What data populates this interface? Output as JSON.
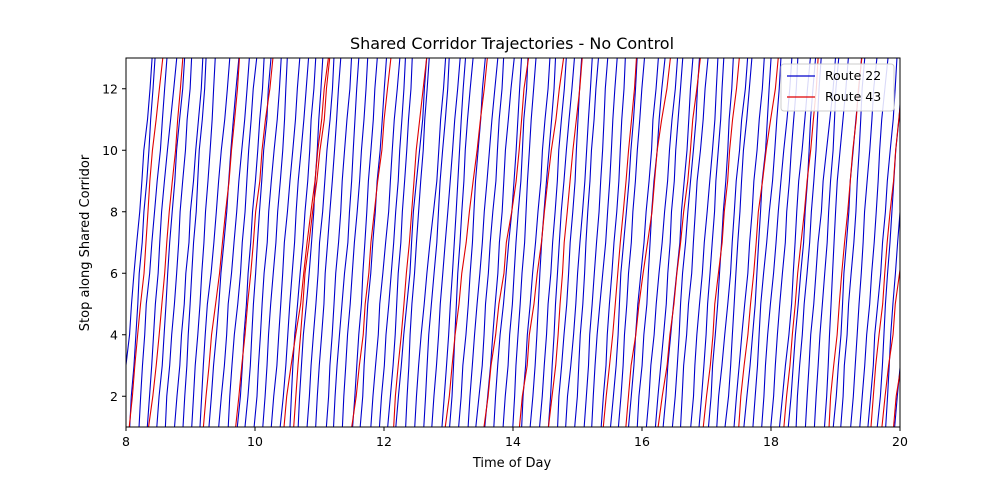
{
  "chart_data": {
    "type": "line",
    "title": "Shared Corridor Trajectories - No Control",
    "xlabel": "Time of Day",
    "ylabel": "Stop along Shared Corridor",
    "xlim": [
      8,
      20
    ],
    "ylim": [
      1,
      13
    ],
    "x_ticks": [
      8,
      10,
      12,
      14,
      16,
      18,
      20
    ],
    "y_ticks": [
      2,
      4,
      6,
      8,
      10,
      12
    ],
    "grid": false,
    "legend_position": "top-right",
    "series": [
      {
        "name": "Route 22",
        "color": "#0000cc",
        "trip_count": 88,
        "departure_start": 7.92,
        "departure_end": 19.92,
        "duration_hours": 0.42
      },
      {
        "name": "Route 43",
        "color": "#e00000",
        "departures": [
          8.05,
          8.35,
          9.2,
          9.7,
          10.45,
          10.6,
          11.5,
          12.15,
          12.95,
          13.55,
          14.1,
          14.55,
          15.4,
          15.75,
          16.25,
          16.95,
          17.5,
          18.2,
          18.9,
          19.55,
          19.72,
          19.9
        ]
      }
    ]
  }
}
